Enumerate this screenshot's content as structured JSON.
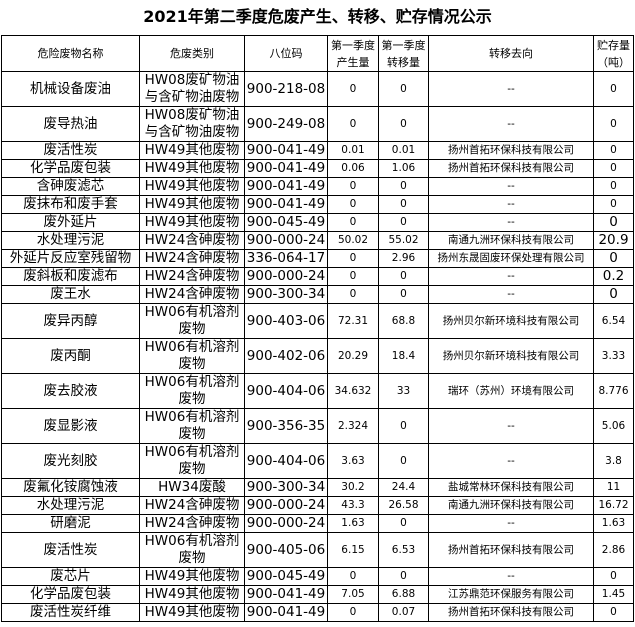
{
  "title": "2021年第二季度危废产生、转移、贮存情况公示",
  "headers": [
    "危险废物名称",
    "危废类别",
    "八位码",
    "第一季度产生量",
    "第一季度转移量",
    "转移去向",
    "贮存量（吨）"
  ],
  "rows": [
    [
      "机械设备废油",
      "HW08废矿物油与含矿物油废物",
      "900-218-08",
      "0",
      "0",
      "--",
      "0"
    ],
    [
      "废导热油",
      "HW08废矿物油与含矿物油废物",
      "900-249-08",
      "0",
      "0",
      "--",
      "0"
    ],
    [
      "废活性炭",
      "HW49其他废物",
      "900-041-49",
      "0.01",
      "0.01",
      "扬州首拓环保科技有限公司",
      "0"
    ],
    [
      "化学品废包装",
      "HW49其他废物",
      "900-041-49",
      "0.06",
      "1.06",
      "扬州首拓环保科技有限公司",
      "0"
    ],
    [
      "含砷废滤芯",
      "HW49其他废物",
      "900-041-49",
      "0",
      "0",
      "--",
      "0"
    ],
    [
      "废抹布和废手套",
      "HW49其他废物",
      "900-041-49",
      "0",
      "0",
      "--",
      "0"
    ],
    [
      "废外延片",
      "HW49其他废物",
      "900-045-49",
      "0",
      "0",
      "--",
      "0"
    ],
    [
      "水处理污泥",
      "HW24含砷废物",
      "900-000-24",
      "50.02",
      "55.02",
      "南通九洲环保科技有限公司",
      "20.9"
    ],
    [
      "外延片反应室残留物",
      "HW24含砷废物",
      "336-064-17",
      "0",
      "2.96",
      "扬州东晟固废环保处理有限公司",
      "0"
    ],
    [
      "废斜板和废滤布",
      "HW24含砷废物",
      "900-000-24",
      "0",
      "0",
      "--",
      "0.2"
    ],
    [
      "废王水",
      "HW24含砷废物",
      "900-300-34",
      "0",
      "0",
      "--",
      "0"
    ],
    [
      "废异丙醇",
      "HW06有机溶剂废物",
      "900-403-06",
      "72.31",
      "68.8",
      "扬州贝尔新环境科技有限公司",
      "6.54"
    ],
    [
      "废丙酮",
      "HW06有机溶剂废物",
      "900-402-06",
      "20.29",
      "18.4",
      "扬州贝尔新环境科技有限公司",
      "3.33"
    ],
    [
      "废去胶液",
      "HW06有机溶剂废物",
      "900-404-06",
      "34.632",
      "33",
      "瑞环（苏州）环境有限公司",
      "8.776"
    ],
    [
      "废显影液",
      "HW06有机溶剂废物",
      "900-356-35",
      "2.324",
      "0",
      "--",
      "5.06"
    ],
    [
      "废光刻胶",
      "HW06有机溶剂废物",
      "900-404-06",
      "3.63",
      "0",
      "--",
      "3.8"
    ],
    [
      "废氟化铵腐蚀液",
      "HW34废酸",
      "900-300-34",
      "30.2",
      "24.4",
      "盐城常林环保科技有限公司",
      "11"
    ],
    [
      "水处理污泥",
      "HW24含砷废物",
      "900-000-24",
      "43.3",
      "26.58",
      "南通九洲环保科技有限公司",
      "16.72"
    ],
    [
      "研磨泥",
      "HW24含砷废物",
      "900-000-24",
      "1.63",
      "0",
      "--",
      "1.63"
    ],
    [
      "废活性炭",
      "HW06有机溶剂废物",
      "900-405-06",
      "6.15",
      "6.53",
      "扬州首拓环保科技有限公司",
      "2.86"
    ],
    [
      "废芯片",
      "HW49其他废物",
      "900-045-49",
      "0",
      "0",
      "--",
      "0"
    ],
    [
      "化学品废包装",
      "HW49其他废物",
      "900-041-49",
      "7.05",
      "6.88",
      "江苏鼎范环保服务有限公司",
      "1.45"
    ],
    [
      "废活性炭纤维",
      "HW49其他废物",
      "900-041-49",
      "0",
      "0.07",
      "扬州首拓环保科技有限公司",
      "0"
    ]
  ]
}
